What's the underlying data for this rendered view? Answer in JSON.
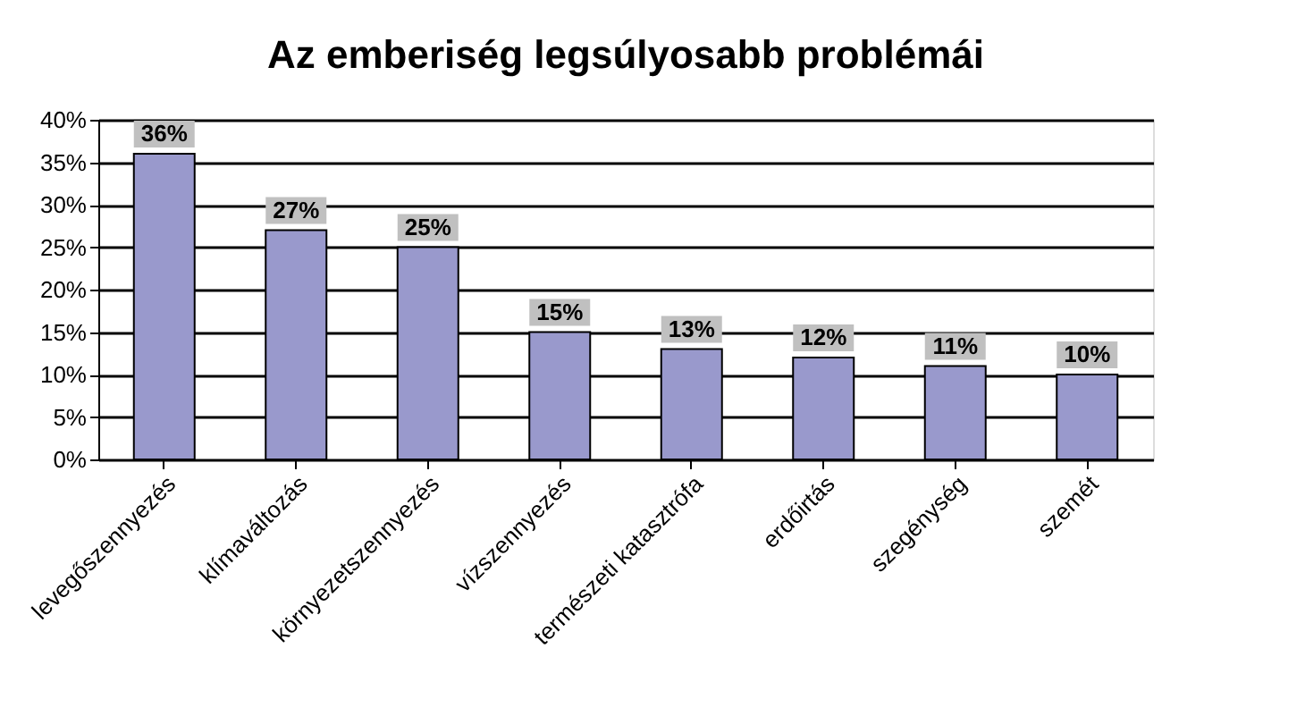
{
  "chart_data": {
    "type": "bar",
    "title": "Az emberiség legsúlyosabb problémái",
    "categories": [
      "levegőszennyezés",
      "klímaváltozás",
      "környezetszennyezés",
      "vízszennyezés",
      "természeti katasztrófa",
      "erdőirtás",
      "szegénység",
      "szemét"
    ],
    "values": [
      36,
      27,
      25,
      15,
      13,
      12,
      11,
      10
    ],
    "value_labels": [
      "36%",
      "27%",
      "25%",
      "15%",
      "13%",
      "12%",
      "11%",
      "10%"
    ],
    "color": "#9999cc",
    "ylim": [
      0,
      40
    ],
    "yticks": [
      {
        "value": 0,
        "label": "0%"
      },
      {
        "value": 5,
        "label": "5%"
      },
      {
        "value": 10,
        "label": "10%"
      },
      {
        "value": 15,
        "label": "15%"
      },
      {
        "value": 20,
        "label": "20%"
      },
      {
        "value": 25,
        "label": "25%"
      },
      {
        "value": 30,
        "label": "30%"
      },
      {
        "value": 35,
        "label": "35%"
      },
      {
        "value": 40,
        "label": "40%"
      }
    ],
    "grid": "y"
  }
}
